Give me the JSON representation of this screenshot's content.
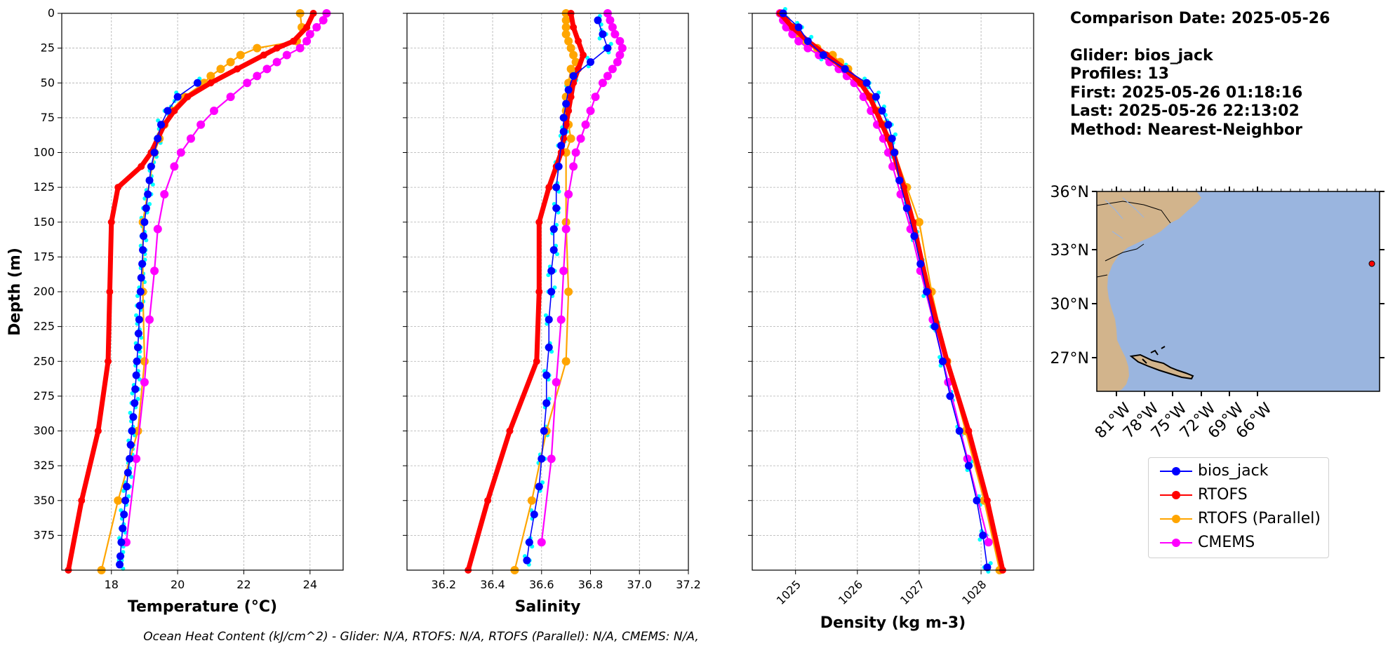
{
  "chart_data": [
    {
      "type": "line",
      "xlabel": "Temperature (°C)",
      "ylabel": "Depth (m)",
      "xlim": [
        16.5,
        25
      ],
      "ylim": [
        400,
        0
      ],
      "xticks": [
        18,
        20,
        22,
        24
      ],
      "yticks": [
        0,
        25,
        50,
        75,
        100,
        125,
        150,
        175,
        200,
        225,
        250,
        275,
        300,
        325,
        350,
        375
      ],
      "grid": true,
      "series": [
        {
          "name": "bios_jack",
          "color": "#0000ff",
          "style": "thin",
          "depth": [
            50,
            60,
            70,
            80,
            90,
            100,
            110,
            120,
            130,
            140,
            150,
            160,
            170,
            180,
            190,
            200,
            210,
            220,
            230,
            240,
            250,
            260,
            270,
            280,
            290,
            300,
            310,
            320,
            330,
            340,
            350,
            360,
            370,
            380,
            390,
            396
          ],
          "values": [
            20.6,
            20.0,
            19.7,
            19.5,
            19.4,
            19.3,
            19.2,
            19.15,
            19.1,
            19.05,
            19.0,
            18.97,
            18.95,
            18.93,
            18.9,
            18.88,
            18.86,
            18.84,
            18.82,
            18.8,
            18.77,
            18.75,
            18.72,
            18.7,
            18.66,
            18.62,
            18.58,
            18.55,
            18.5,
            18.46,
            18.42,
            18.38,
            18.34,
            18.3,
            18.27,
            18.25
          ]
        },
        {
          "name": "RTOFS",
          "color": "#ff0000",
          "style": "thick",
          "depth": [
            0,
            10,
            20,
            25,
            30,
            40,
            50,
            60,
            70,
            80,
            90,
            100,
            110,
            125,
            150,
            200,
            250,
            300,
            350,
            400
          ],
          "values": [
            24.1,
            23.9,
            23.5,
            23.0,
            22.6,
            21.8,
            21.0,
            20.3,
            19.9,
            19.6,
            19.4,
            19.2,
            18.9,
            18.2,
            18.0,
            17.95,
            17.9,
            17.6,
            17.1,
            16.7
          ]
        },
        {
          "name": "RTOFS (Parallel)",
          "color": "#ffa500",
          "style": "medium",
          "depth": [
            0,
            10,
            20,
            25,
            30,
            35,
            40,
            45,
            50,
            60,
            70,
            80,
            90,
            100,
            150,
            200,
            250,
            300,
            350,
            400
          ],
          "values": [
            23.7,
            23.75,
            23.6,
            22.4,
            21.9,
            21.6,
            21.3,
            21.0,
            20.8,
            20.2,
            19.8,
            19.6,
            19.45,
            19.3,
            18.95,
            18.95,
            19.0,
            18.8,
            18.2,
            17.7
          ]
        },
        {
          "name": "CMEMS",
          "color": "#ff00ff",
          "style": "medium",
          "depth": [
            0,
            5,
            10,
            15,
            20,
            25,
            30,
            35,
            40,
            45,
            50,
            60,
            70,
            80,
            90,
            100,
            110,
            130,
            155,
            185,
            220,
            265,
            320,
            380
          ],
          "values": [
            24.5,
            24.4,
            24.2,
            24.0,
            23.9,
            23.7,
            23.3,
            23.0,
            22.7,
            22.4,
            22.1,
            21.6,
            21.1,
            20.7,
            20.4,
            20.1,
            19.9,
            19.6,
            19.4,
            19.3,
            19.15,
            19.0,
            18.75,
            18.45
          ]
        }
      ]
    },
    {
      "type": "line",
      "xlabel": "Salinity",
      "ylim": [
        400,
        0
      ],
      "xlim": [
        36.05,
        37.2
      ],
      "xticks": [
        36.2,
        36.4,
        36.6,
        36.8,
        37.0,
        37.2
      ],
      "grid": true,
      "series": [
        {
          "name": "bios_jack",
          "color": "#0000ff",
          "style": "thin",
          "depth": [
            5,
            15,
            25,
            35,
            45,
            55,
            65,
            75,
            85,
            95,
            110,
            125,
            140,
            155,
            170,
            185,
            200,
            220,
            240,
            260,
            280,
            300,
            320,
            340,
            360,
            380,
            393
          ],
          "values": [
            36.83,
            36.85,
            36.87,
            36.8,
            36.73,
            36.71,
            36.7,
            36.69,
            36.69,
            36.68,
            36.67,
            36.66,
            36.66,
            36.65,
            36.65,
            36.64,
            36.64,
            36.63,
            36.63,
            36.62,
            36.62,
            36.61,
            36.6,
            36.59,
            36.57,
            36.55,
            36.54
          ]
        },
        {
          "name": "RTOFS",
          "color": "#ff0000",
          "style": "thick",
          "depth": [
            0,
            10,
            20,
            30,
            40,
            50,
            60,
            70,
            80,
            90,
            100,
            110,
            125,
            150,
            200,
            250,
            300,
            350,
            400
          ],
          "values": [
            36.72,
            36.73,
            36.75,
            36.77,
            36.75,
            36.73,
            36.72,
            36.71,
            36.7,
            36.69,
            36.68,
            36.66,
            36.63,
            36.59,
            36.59,
            36.58,
            36.47,
            36.38,
            36.3
          ]
        },
        {
          "name": "RTOFS (Parallel)",
          "color": "#ffa500",
          "style": "medium",
          "depth": [
            0,
            5,
            10,
            15,
            20,
            25,
            30,
            35,
            40,
            50,
            60,
            70,
            80,
            90,
            100,
            150,
            200,
            250,
            300,
            350,
            400
          ],
          "values": [
            36.7,
            36.7,
            36.7,
            36.7,
            36.71,
            36.72,
            36.73,
            36.74,
            36.72,
            36.71,
            36.7,
            36.7,
            36.71,
            36.72,
            36.7,
            36.7,
            36.71,
            36.7,
            36.62,
            36.56,
            36.49
          ]
        },
        {
          "name": "CMEMS",
          "color": "#ff00ff",
          "style": "medium",
          "depth": [
            0,
            5,
            10,
            15,
            20,
            25,
            30,
            35,
            40,
            45,
            50,
            60,
            70,
            80,
            90,
            100,
            110,
            130,
            155,
            185,
            220,
            265,
            320,
            380
          ],
          "values": [
            36.87,
            36.88,
            36.89,
            36.9,
            36.92,
            36.93,
            36.92,
            36.91,
            36.89,
            36.87,
            36.85,
            36.82,
            36.8,
            36.78,
            36.76,
            36.74,
            36.73,
            36.71,
            36.7,
            36.69,
            36.68,
            36.66,
            36.64,
            36.6
          ]
        }
      ]
    },
    {
      "type": "line",
      "xlabel": "Density (kg m-3)",
      "ylim": [
        400,
        0
      ],
      "xlim": [
        1024.3,
        1028.85
      ],
      "xticks": [
        1025,
        1026,
        1027,
        1028
      ],
      "grid": true,
      "series": [
        {
          "name": "bios_jack",
          "color": "#0000ff",
          "style": "thin",
          "depth": [
            0,
            10,
            20,
            30,
            40,
            50,
            60,
            70,
            80,
            90,
            100,
            120,
            140,
            160,
            180,
            200,
            225,
            250,
            275,
            300,
            325,
            350,
            375,
            398
          ],
          "values": [
            1024.8,
            1025.05,
            1025.2,
            1025.45,
            1025.8,
            1026.15,
            1026.3,
            1026.4,
            1026.5,
            1026.56,
            1026.6,
            1026.68,
            1026.8,
            1026.92,
            1027.02,
            1027.12,
            1027.25,
            1027.38,
            1027.5,
            1027.65,
            1027.8,
            1027.93,
            1028.03,
            1028.1
          ]
        },
        {
          "name": "RTOFS",
          "color": "#ff0000",
          "style": "thick",
          "depth": [
            0,
            10,
            20,
            30,
            40,
            50,
            60,
            70,
            80,
            90,
            100,
            125,
            150,
            200,
            250,
            300,
            350,
            400
          ],
          "values": [
            1024.75,
            1024.95,
            1025.2,
            1025.5,
            1025.8,
            1026.05,
            1026.2,
            1026.3,
            1026.4,
            1026.5,
            1026.58,
            1026.75,
            1026.9,
            1027.15,
            1027.45,
            1027.8,
            1028.1,
            1028.35
          ]
        },
        {
          "name": "RTOFS (Parallel)",
          "color": "#ffa500",
          "style": "medium",
          "depth": [
            0,
            5,
            10,
            15,
            20,
            25,
            30,
            35,
            40,
            50,
            60,
            70,
            80,
            90,
            100,
            125,
            150,
            200,
            250,
            300,
            350,
            400
          ],
          "values": [
            1024.75,
            1024.85,
            1024.95,
            1025.05,
            1025.15,
            1025.35,
            1025.6,
            1025.72,
            1025.85,
            1026.05,
            1026.2,
            1026.33,
            1026.43,
            1026.52,
            1026.6,
            1026.8,
            1027.0,
            1027.2,
            1027.45,
            1027.75,
            1028.05,
            1028.3
          ]
        },
        {
          "name": "CMEMS",
          "color": "#ff00ff",
          "style": "medium",
          "depth": [
            0,
            5,
            10,
            15,
            20,
            25,
            30,
            35,
            40,
            45,
            50,
            60,
            70,
            80,
            90,
            100,
            110,
            130,
            155,
            185,
            220,
            265,
            320,
            380
          ],
          "values": [
            1024.75,
            1024.8,
            1024.85,
            1024.95,
            1025.05,
            1025.2,
            1025.38,
            1025.55,
            1025.7,
            1025.83,
            1025.95,
            1026.1,
            1026.22,
            1026.32,
            1026.42,
            1026.5,
            1026.57,
            1026.7,
            1026.86,
            1027.02,
            1027.22,
            1027.47,
            1027.78,
            1028.12
          ]
        }
      ]
    }
  ],
  "info": {
    "comparison": "Comparison Date: 2025-05-26",
    "glider": "Glider: bios_jack",
    "profiles": "Profiles: 13",
    "first": "First: 2025-05-26 01:18:16",
    "last": "Last: 2025-05-26 22:13:02",
    "method": "Method: Nearest-Neighbor"
  },
  "map": {
    "lat_ticks": [
      "36°N",
      "33°N",
      "30°N",
      "27°N"
    ],
    "lon_ticks": [
      "81°W",
      "78°W",
      "75°W",
      "72°W",
      "69°W",
      "66°W"
    ],
    "ocean_color": "#9ab5df",
    "land_color": "#d2b48c",
    "marker_color": "#ff0000"
  },
  "legend": [
    {
      "label": "bios_jack",
      "color": "#0000ff"
    },
    {
      "label": "RTOFS",
      "color": "#ff0000"
    },
    {
      "label": "RTOFS (Parallel)",
      "color": "#ffa500"
    },
    {
      "label": "CMEMS",
      "color": "#ff00ff"
    }
  ],
  "footer": "Ocean Heat Content (kJ/cm^2) - Glider: N/A,  RTOFS: N/A,  RTOFS (Parallel): N/A,  CMEMS: N/A,"
}
